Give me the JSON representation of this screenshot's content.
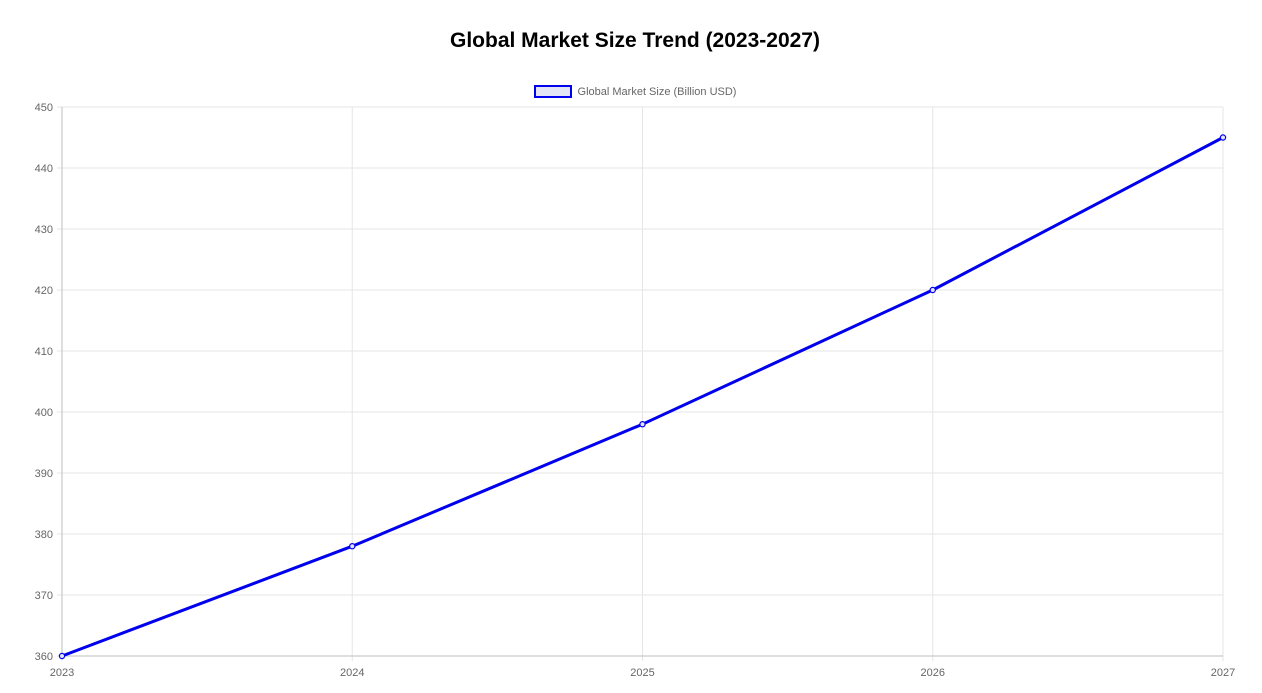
{
  "title": "Global Market Size Trend (2023-2027)",
  "legend": {
    "label": "Global Market Size (Billion USD)",
    "position": "top-center"
  },
  "colors": {
    "series": "#0000ee",
    "series_fill": "#e4e4f7",
    "grid": "#e5e5e5",
    "axis": "#bdbdbd",
    "tick_text": "#666666"
  },
  "chart_data": {
    "type": "line",
    "title": "Global Market Size Trend (2023-2027)",
    "xlabel": "",
    "ylabel": "",
    "categories": [
      "2023",
      "2024",
      "2025",
      "2026",
      "2027"
    ],
    "series": [
      {
        "name": "Global Market Size (Billion USD)",
        "values": [
          360,
          378,
          398,
          420,
          445
        ]
      }
    ],
    "ylim": [
      360,
      450
    ],
    "yticks": [
      360,
      370,
      380,
      390,
      400,
      410,
      420,
      430,
      440,
      450
    ],
    "grid": true,
    "legend_position": "top"
  }
}
